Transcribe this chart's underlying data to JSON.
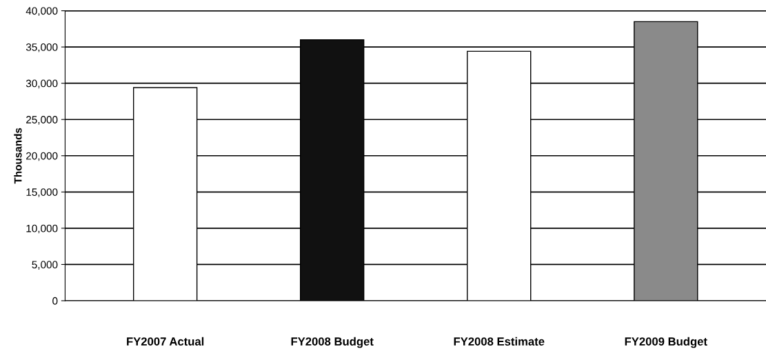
{
  "chart_data": {
    "type": "bar",
    "ylabel": "Thousands",
    "categories": [
      "FY2007 Actual",
      "FY2008 Budget",
      "FY2008 Estimate",
      "FY2009 Budget"
    ],
    "values": [
      29400,
      36000,
      34400,
      38500
    ],
    "colors": [
      "#ffffff",
      "#111111",
      "#ffffff",
      "#8a8a8a"
    ],
    "ylim": [
      0,
      40000
    ],
    "yticks": [
      {
        "value": 0,
        "label": "0"
      },
      {
        "value": 5000,
        "label": "5,000"
      },
      {
        "value": 10000,
        "label": "10,000"
      },
      {
        "value": 15000,
        "label": "15,000"
      },
      {
        "value": 20000,
        "label": "20,000"
      },
      {
        "value": 25000,
        "label": "25,000"
      },
      {
        "value": 30000,
        "label": "30,000"
      },
      {
        "value": 35000,
        "label": "35,000"
      },
      {
        "value": 40000,
        "label": "40,000"
      }
    ],
    "grid": "y",
    "legend": false
  }
}
